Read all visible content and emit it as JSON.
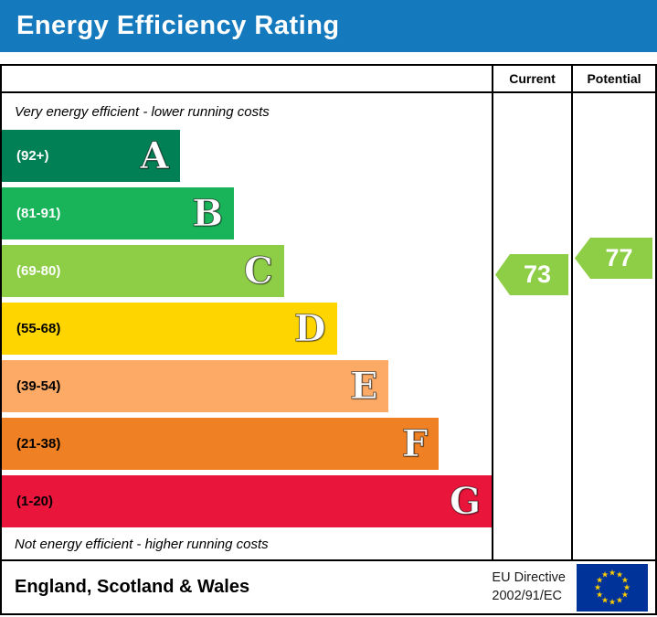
{
  "title": "Energy Efficiency Rating",
  "header": {
    "current": "Current",
    "potential": "Potential"
  },
  "notes": {
    "top": "Very energy efficient - lower running costs",
    "bottom": "Not energy efficient - higher running costs"
  },
  "footer": {
    "region": "England, Scotland & Wales",
    "directive": [
      "EU Directive",
      "2002/91/EC"
    ]
  },
  "colors": {
    "title_bar": "#1479bd",
    "eu_flag_bg": "#003399",
    "eu_star": "#ffcc00"
  },
  "chart_data": {
    "type": "bar",
    "title": "Energy Efficiency Rating",
    "categories": [
      "A",
      "B",
      "C",
      "D",
      "E",
      "F",
      "G"
    ],
    "bands": [
      {
        "letter": "A",
        "range": "(92+)",
        "color": "#008054"
      },
      {
        "letter": "B",
        "range": "(81-91)",
        "color": "#19b459"
      },
      {
        "letter": "C",
        "range": "(69-80)",
        "color": "#8dce46"
      },
      {
        "letter": "D",
        "range": "(55-68)",
        "color": "#ffd500"
      },
      {
        "letter": "E",
        "range": "(39-54)",
        "color": "#fcaa65"
      },
      {
        "letter": "F",
        "range": "(21-38)",
        "color": "#ef8023"
      },
      {
        "letter": "G",
        "range": "(1-20)",
        "color": "#e9153b"
      }
    ],
    "current": {
      "value": 73,
      "band": "C",
      "color": "#8dce46"
    },
    "potential": {
      "value": 77,
      "band": "C",
      "color": "#8dce46"
    }
  }
}
